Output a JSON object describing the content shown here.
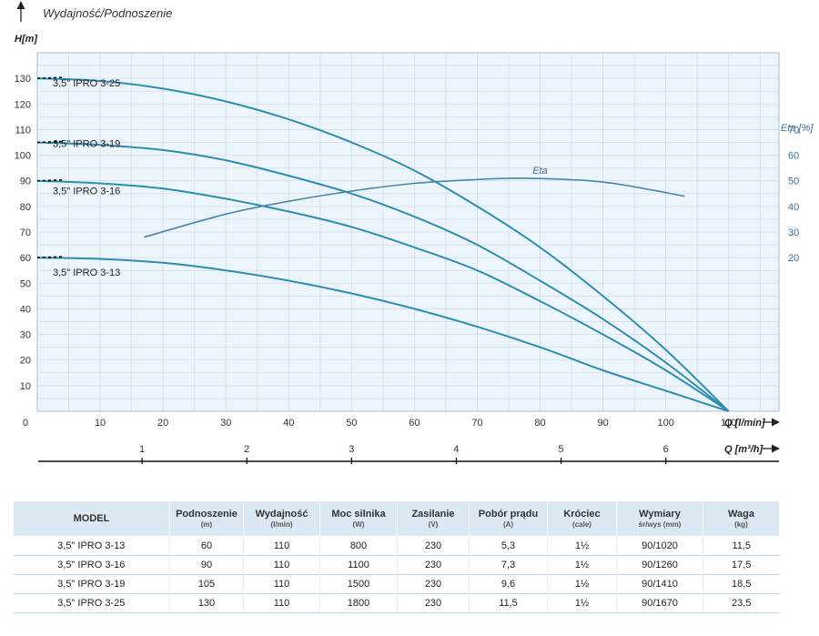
{
  "chart_data": {
    "type": "line",
    "title": "Wydajność/Podnoszenie",
    "ylabel": "H[m]",
    "xlabel": "Q [l/min]",
    "x2label": "Q [m³/h]",
    "y2label": "Eta [%]",
    "xlim": [
      0,
      110
    ],
    "ylim": [
      0,
      130
    ],
    "y2lim": [
      20,
      70
    ],
    "grid": true,
    "x_ticks": [
      0,
      10,
      20,
      30,
      40,
      50,
      60,
      70,
      80,
      90,
      100,
      110
    ],
    "y_ticks": [
      10,
      20,
      30,
      40,
      50,
      60,
      70,
      80,
      90,
      100,
      110,
      120,
      130
    ],
    "x2_ticks": [
      1,
      2,
      3,
      4,
      5,
      6
    ],
    "y2_ticks": [
      20,
      30,
      40,
      50,
      60,
      70
    ],
    "series": [
      {
        "name": "3,5\" IPRO 3-25",
        "x": [
          0,
          10,
          20,
          30,
          40,
          50,
          60,
          70,
          80,
          90,
          100,
          110
        ],
        "values": [
          130,
          129,
          126,
          121,
          114,
          105,
          94,
          80,
          64,
          45,
          24,
          0
        ]
      },
      {
        "name": "3,5\" IPRO 3-19",
        "x": [
          0,
          10,
          20,
          30,
          40,
          50,
          60,
          70,
          80,
          90,
          100,
          110
        ],
        "values": [
          105,
          104,
          102,
          98,
          92,
          85,
          76,
          65,
          51,
          36,
          19,
          0
        ]
      },
      {
        "name": "3,5\" IPRO 3-16",
        "x": [
          0,
          10,
          20,
          30,
          40,
          50,
          60,
          70,
          80,
          90,
          100,
          110
        ],
        "values": [
          90,
          89,
          87,
          83,
          78,
          72,
          64,
          55,
          43,
          30,
          16,
          0
        ]
      },
      {
        "name": "3,5\" IPRO 3-13",
        "x": [
          0,
          10,
          20,
          30,
          40,
          50,
          60,
          70,
          80,
          90,
          100,
          110
        ],
        "values": [
          60,
          59.5,
          58,
          55,
          51,
          46,
          40,
          33,
          25,
          16,
          8,
          0
        ]
      },
      {
        "name": "Eta",
        "axis": "right",
        "x": [
          17,
          30,
          40,
          50,
          60,
          70,
          78,
          90,
          103
        ],
        "values": [
          28,
          37,
          42,
          46,
          49,
          50.5,
          51,
          49.5,
          44
        ]
      }
    ]
  },
  "table": {
    "headers": [
      {
        "label": "MODEL",
        "unit": ""
      },
      {
        "label": "Podnoszenie",
        "unit": "(m)"
      },
      {
        "label": "Wydajność",
        "unit": "(l/min)"
      },
      {
        "label": "Moc silnika",
        "unit": "(W)"
      },
      {
        "label": "Zasilanie",
        "unit": "(V)"
      },
      {
        "label": "Pobór prądu",
        "unit": "(A)"
      },
      {
        "label": "Króciec",
        "unit": "(cale)"
      },
      {
        "label": "Wymiary",
        "unit": "śr/wys (mm)"
      },
      {
        "label": "Waga",
        "unit": "(kg)"
      }
    ],
    "rows": [
      [
        "3,5\" IPRO 3-13",
        "60",
        "110",
        "800",
        "230",
        "5,3",
        "1½",
        "90/1020",
        "11,5"
      ],
      [
        "3,5\" IPRO 3-16",
        "90",
        "110",
        "1100",
        "230",
        "7,3",
        "1½",
        "90/1260",
        "17,5"
      ],
      [
        "3,5\" IPRO 3-19",
        "105",
        "110",
        "1500",
        "230",
        "9,6",
        "1½",
        "90/1410",
        "18,5"
      ],
      [
        "3,5\" IPRO 3-25",
        "130",
        "110",
        "1800",
        "230",
        "11,5",
        "1½",
        "90/1670",
        "23,5"
      ]
    ]
  },
  "colors": {
    "curve": "#2e8db0",
    "eta": "#4a86a8",
    "grid": "#d2dde8",
    "plot_bg": "#edf5fc",
    "header_bg": "#dce9f5"
  }
}
